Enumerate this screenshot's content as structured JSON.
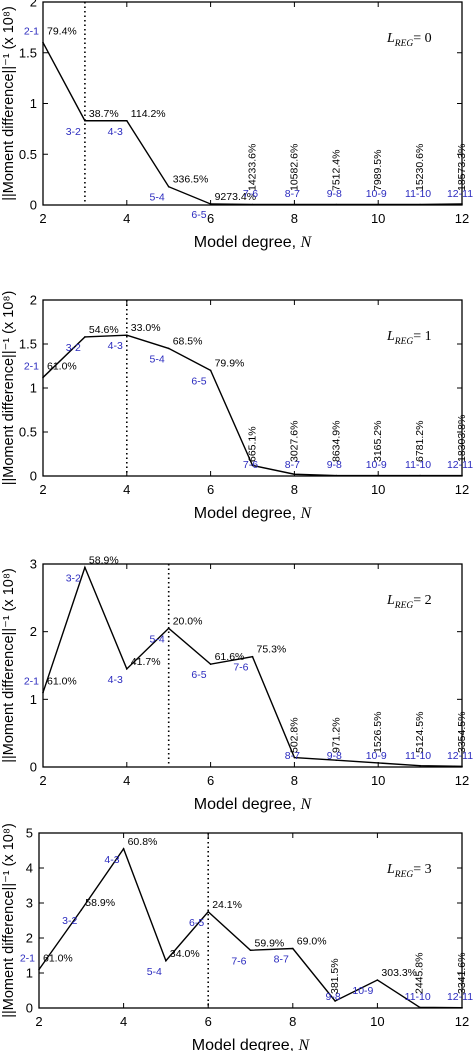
{
  "colors": {
    "line": "#000000",
    "pair_label": "#2b2bbf",
    "axis": "#000000"
  },
  "chart_data": [
    {
      "type": "line",
      "legend": {
        "var": "L",
        "sub": "REG",
        "eq": "= 0"
      },
      "xlabel": "Model degree, ",
      "xlabel_var": "N",
      "ylabel": "||Moment difference||⁻¹ (x 10⁸)",
      "xlim": [
        2,
        12
      ],
      "ylim": [
        0,
        2
      ],
      "xticks": [
        2,
        4,
        6,
        8,
        10,
        12
      ],
      "yticks": [
        0,
        0.5,
        1,
        1.5,
        2
      ],
      "yticklabels": [
        "0",
        "0.5",
        "1",
        "1.5",
        "2"
      ],
      "optimal_degree": 3,
      "x": [
        2,
        3,
        4,
        5,
        6,
        7,
        8,
        9,
        10,
        11,
        12
      ],
      "y": [
        1.6,
        0.83,
        0.83,
        0.18,
        0.01,
        0.005,
        0.005,
        0.005,
        0.005,
        0.005,
        0.01
      ],
      "pairs": [
        {
          "pair": "2-1",
          "pct": "79.4%"
        },
        {
          "pair": "3-2",
          "pct": "38.7%"
        },
        {
          "pair": "4-3",
          "pct": "114.2%"
        },
        {
          "pair": "5-4",
          "pct": "336.5%"
        },
        {
          "pair": "6-5",
          "pct": "9273.4%"
        },
        {
          "pair": "7-6",
          "pct": "14233.6%"
        },
        {
          "pair": "8-7",
          "pct": "10582.6%"
        },
        {
          "pair": "9-8",
          "pct": "7512.4%"
        },
        {
          "pair": "10-9",
          "pct": "7989.5%"
        },
        {
          "pair": "11-10",
          "pct": "15230.6%"
        },
        {
          "pair": "12-11",
          "pct": "18573.3%"
        }
      ]
    },
    {
      "type": "line",
      "legend": {
        "var": "L",
        "sub": "REG",
        "eq": "= 1"
      },
      "xlabel": "Model degree, ",
      "xlabel_var": "N",
      "ylabel": "||Moment difference||⁻¹ (x 10⁸)",
      "xlim": [
        2,
        12
      ],
      "ylim": [
        0,
        2
      ],
      "xticks": [
        2,
        4,
        6,
        8,
        10,
        12
      ],
      "yticks": [
        0,
        0.5,
        1,
        1.5,
        2
      ],
      "yticklabels": [
        "0",
        "0.5",
        "1",
        "1.5",
        "2"
      ],
      "optimal_degree": 4,
      "x": [
        2,
        3,
        4,
        5,
        6,
        7,
        8,
        9,
        10,
        11,
        12
      ],
      "y": [
        1.12,
        1.58,
        1.6,
        1.45,
        1.2,
        0.12,
        0.02,
        0.005,
        0.005,
        0.005,
        0.005
      ],
      "pairs": [
        {
          "pair": "2-1",
          "pct": "61.0%"
        },
        {
          "pair": "3-2",
          "pct": "54.6%"
        },
        {
          "pair": "4-3",
          "pct": "33.0%"
        },
        {
          "pair": "5-4",
          "pct": "68.5%"
        },
        {
          "pair": "6-5",
          "pct": "79.9%"
        },
        {
          "pair": "7-6",
          "pct": "665.1%"
        },
        {
          "pair": "8-7",
          "pct": "3027.6%"
        },
        {
          "pair": "9-8",
          "pct": "8634.9%"
        },
        {
          "pair": "10-9",
          "pct": "3165.2%"
        },
        {
          "pair": "11-10",
          "pct": "6781.2%"
        },
        {
          "pair": "12-11",
          "pct": "18303.8%"
        }
      ]
    },
    {
      "type": "line",
      "legend": {
        "var": "L",
        "sub": "REG",
        "eq": "= 2"
      },
      "xlabel": "Model degree, ",
      "xlabel_var": "N",
      "ylabel": "||Moment difference||⁻¹ (x 10⁸)",
      "xlim": [
        2,
        12
      ],
      "ylim": [
        0,
        3
      ],
      "xticks": [
        2,
        4,
        6,
        8,
        10,
        12
      ],
      "yticks": [
        0,
        1,
        2,
        3
      ],
      "yticklabels": [
        "0",
        "1",
        "2",
        "3"
      ],
      "optimal_degree": 5,
      "x": [
        2,
        3,
        4,
        5,
        6,
        7,
        8,
        9,
        10,
        11,
        12
      ],
      "y": [
        1.1,
        2.95,
        1.45,
        2.05,
        1.52,
        1.63,
        0.14,
        0.1,
        0.06,
        0.02,
        0.01
      ],
      "pairs": [
        {
          "pair": "2-1",
          "pct": "61.0%"
        },
        {
          "pair": "3-2",
          "pct": "58.9%"
        },
        {
          "pair": "4-3",
          "pct": "41.7%"
        },
        {
          "pair": "5-4",
          "pct": "20.0%"
        },
        {
          "pair": "6-5",
          "pct": "61.6%"
        },
        {
          "pair": "7-6",
          "pct": "75.3%"
        },
        {
          "pair": "8-7",
          "pct": "502.8%"
        },
        {
          "pair": "9-8",
          "pct": "971.2%"
        },
        {
          "pair": "10-9",
          "pct": "1526.5%"
        },
        {
          "pair": "11-10",
          "pct": "5124.5%"
        },
        {
          "pair": "12-11",
          "pct": "3354.5%"
        }
      ]
    },
    {
      "type": "line",
      "legend": {
        "var": "L",
        "sub": "REG",
        "eq": "= 3"
      },
      "xlabel": "Model degree, ",
      "xlabel_var": "N",
      "ylabel": "||Moment difference||⁻¹ (x 10⁸)",
      "xlim": [
        2,
        12
      ],
      "ylim": [
        0,
        5
      ],
      "xticks": [
        2,
        4,
        6,
        8,
        10,
        12
      ],
      "yticks": [
        0,
        1,
        2,
        3,
        4,
        5
      ],
      "yticklabels": [
        "0",
        "1",
        "2",
        "3",
        "4",
        "5"
      ],
      "optimal_degree": 6,
      "x": [
        2,
        3,
        4,
        5,
        6,
        7,
        8,
        9,
        10,
        11,
        12
      ],
      "y": [
        1.1,
        2.8,
        4.55,
        1.35,
        2.75,
        1.65,
        1.7,
        0.2,
        0.8,
        0.02,
        0.01
      ],
      "pairs": [
        {
          "pair": "2-1",
          "pct": "61.0%"
        },
        {
          "pair": "3-2",
          "pct": "58.9%"
        },
        {
          "pair": "4-3",
          "pct": "60.8%"
        },
        {
          "pair": "5-4",
          "pct": "34.0%"
        },
        {
          "pair": "6-5",
          "pct": "24.1%"
        },
        {
          "pair": "7-6",
          "pct": "59.9%"
        },
        {
          "pair": "8-7",
          "pct": "69.0%"
        },
        {
          "pair": "9-8",
          "pct": "381.5%"
        },
        {
          "pair": "10-9",
          "pct": "303.3%"
        },
        {
          "pair": "11-10",
          "pct": "2445.8%"
        },
        {
          "pair": "12-11",
          "pct": "3341.6%"
        }
      ]
    }
  ]
}
